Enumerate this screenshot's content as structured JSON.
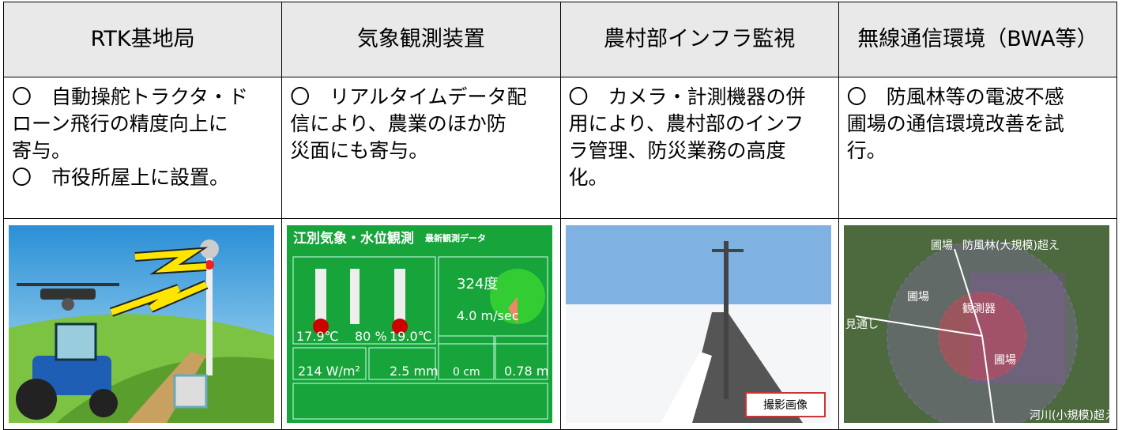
{
  "table": {
    "header": [
      "RTK基地局",
      "気象観測装置",
      "農村部インフラ監視",
      "無線通信環境（BWA等）"
    ],
    "rows": [
      [
        [
          "〇　自動操舵トラクタ・ド",
          "ローン飛行の精度向上に",
          "寄与。",
          "〇　市役所屋上に設置。"
        ],
        [
          "〇　リアルタイムデータ配",
          "信により、農業のほか防",
          "災面にも寄与。"
        ],
        [
          "〇　カメラ・計測機器の併",
          "用により、農村部のインフ",
          "ラ管理、防災業務の高度",
          "化。"
        ],
        [
          "〇　防風林等の電波不感",
          "圃場の通信環境改善を試",
          "行。"
        ]
      ]
    ]
  },
  "images": {
    "weather": {
      "title": "江別気象・水位観測",
      "subtitle": "最新観測データ",
      "readings": [
        "17.9℃",
        "80 %",
        "19.0℃",
        "324度",
        "4.0 m/sec",
        "214 W/m²",
        "2.5 mm",
        "0 cm",
        "0.78 m"
      ]
    },
    "camera": {
      "caption": "撮影画像"
    },
    "map": {
      "labels": [
        "圃場",
        "防風林(大規模)超え",
        "圃場",
        "観測器",
        "見通し",
        "圃場",
        "河川(小規模)超え"
      ]
    }
  }
}
